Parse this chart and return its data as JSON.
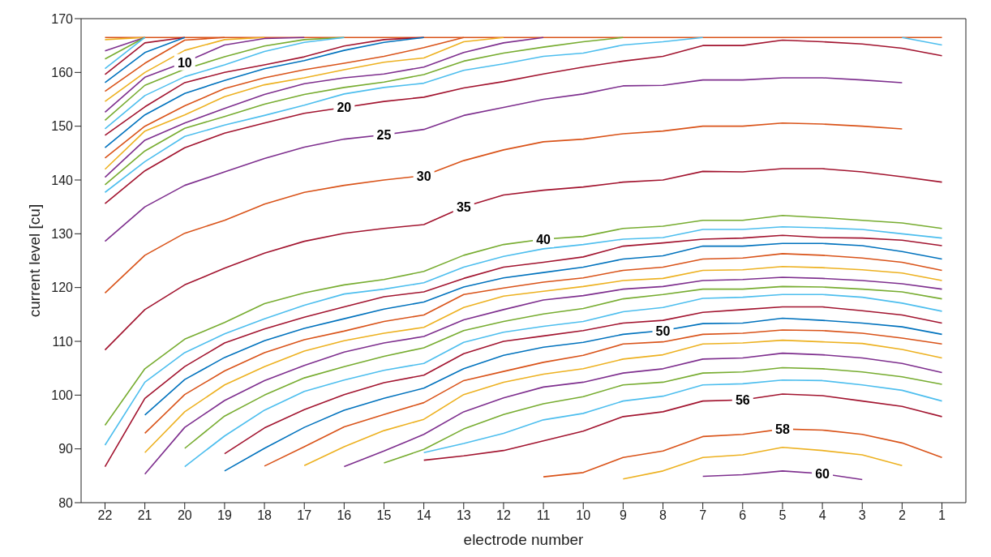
{
  "chart_data": {
    "type": "line",
    "xlabel": "electrode number",
    "ylabel": "current level [cu]",
    "categories": [
      "22",
      "21",
      "20",
      "19",
      "18",
      "17",
      "16",
      "15",
      "14",
      "13",
      "12",
      "11",
      "10",
      "9",
      "8",
      "7",
      "6",
      "5",
      "4",
      "3",
      "2",
      "1"
    ],
    "ylim": [
      80,
      170
    ],
    "yticks": [
      80,
      90,
      100,
      110,
      120,
      130,
      140,
      150,
      160,
      170
    ],
    "series": [
      {
        "color": "#d95319",
        "values": [
          166.5,
          166.5,
          166.5,
          166.5,
          166.5,
          166.5,
          166.5,
          166.5,
          166.5,
          166.5,
          166.5,
          166.5,
          166.5,
          166.5,
          166.5,
          166.5,
          166.5,
          166.5,
          166.5,
          166.5,
          166.5,
          166.5
        ]
      },
      {
        "color": "#edb120",
        "values": [
          166.1,
          166.5,
          null,
          null,
          null,
          null,
          null,
          null,
          null,
          null,
          null,
          null,
          null,
          null,
          null,
          null,
          null,
          null,
          null,
          null,
          null,
          null
        ]
      },
      {
        "color": "#7e2f8e",
        "values": [
          164.0,
          166.5,
          null,
          null,
          null,
          null,
          null,
          null,
          null,
          null,
          null,
          null,
          null,
          null,
          null,
          null,
          null,
          null,
          null,
          null,
          null,
          null
        ]
      },
      {
        "color": "#77ac30",
        "values": [
          162.5,
          166.5,
          null,
          null,
          null,
          null,
          null,
          null,
          null,
          null,
          null,
          null,
          null,
          null,
          null,
          null,
          null,
          null,
          null,
          null,
          null,
          null
        ]
      },
      {
        "color": "#4dbeee",
        "values": [
          160.7,
          166.5,
          null,
          null,
          null,
          null,
          null,
          null,
          null,
          null,
          null,
          null,
          null,
          null,
          null,
          null,
          null,
          null,
          null,
          null,
          null,
          null
        ]
      },
      {
        "color": "#a2142f",
        "values": [
          159.6,
          165.5,
          166.5,
          null,
          null,
          null,
          null,
          null,
          null,
          null,
          null,
          null,
          null,
          null,
          null,
          null,
          null,
          null,
          null,
          null,
          null,
          null
        ]
      },
      {
        "color": "#0072bd",
        "values": [
          158.1,
          163.7,
          166.5,
          null,
          null,
          null,
          null,
          null,
          null,
          null,
          null,
          null,
          null,
          null,
          null,
          null,
          null,
          null,
          null,
          null,
          null,
          null
        ]
      },
      {
        "color": "#d95319",
        "values": [
          156.5,
          161.7,
          166.0,
          166.5,
          null,
          null,
          null,
          null,
          null,
          null,
          null,
          null,
          null,
          null,
          null,
          null,
          null,
          null,
          null,
          null,
          null,
          null
        ]
      },
      {
        "color": "#edb120",
        "values": [
          154.6,
          160.0,
          164.1,
          166.1,
          166.5,
          null,
          null,
          null,
          null,
          null,
          null,
          null,
          null,
          null,
          null,
          null,
          null,
          null,
          null,
          null,
          null,
          null
        ]
      },
      {
        "color": "#7e2f8e",
        "values": [
          152.6,
          159.1,
          161.9,
          165.1,
          166.3,
          166.5,
          null,
          null,
          null,
          null,
          null,
          null,
          null,
          null,
          null,
          null,
          null,
          null,
          null,
          null,
          null,
          null
        ]
      },
      {
        "color": "#77ac30",
        "values": [
          151.1,
          157.6,
          160.6,
          162.9,
          164.9,
          166.1,
          166.5,
          null,
          null,
          null,
          null,
          null,
          null,
          null,
          null,
          null,
          null,
          null,
          null,
          null,
          null,
          null
        ]
      },
      {
        "color": "#4dbeee",
        "values": [
          149.5,
          155.7,
          159.2,
          161.4,
          163.9,
          165.6,
          166.5,
          null,
          null,
          null,
          null,
          null,
          null,
          null,
          null,
          null,
          null,
          null,
          null,
          null,
          null,
          null
        ]
      },
      {
        "color": "#a2142f",
        "values": [
          148.3,
          153.6,
          158.1,
          160.0,
          161.4,
          162.9,
          164.9,
          166.1,
          166.5,
          null,
          null,
          null,
          null,
          null,
          null,
          null,
          null,
          null,
          null,
          null,
          null,
          null
        ]
      },
      {
        "color": "#0072bd",
        "values": [
          146.0,
          152.1,
          156.1,
          158.5,
          160.7,
          162.2,
          164.1,
          165.6,
          166.5,
          null,
          null,
          null,
          null,
          null,
          null,
          null,
          null,
          null,
          null,
          null,
          null,
          null
        ]
      },
      {
        "color": "#d95319",
        "values": [
          144.1,
          150.0,
          153.8,
          157.0,
          159.0,
          160.5,
          161.7,
          163.0,
          164.6,
          166.5,
          null,
          null,
          null,
          null,
          null,
          null,
          null,
          null,
          null,
          null,
          null,
          null
        ]
      },
      {
        "color": "#edb120",
        "values": [
          142.0,
          149.1,
          152.1,
          155.5,
          157.7,
          159.0,
          160.5,
          161.9,
          162.7,
          165.7,
          166.5,
          null,
          null,
          null,
          null,
          null,
          null,
          null,
          null,
          null,
          null,
          null
        ]
      },
      {
        "color": "#7e2f8e",
        "values": [
          140.5,
          147.4,
          150.6,
          153.3,
          155.9,
          157.9,
          159.0,
          159.7,
          161.0,
          163.7,
          165.5,
          166.5,
          null,
          null,
          null,
          null,
          null,
          null,
          null,
          null,
          null,
          null
        ]
      },
      {
        "color": "#77ac30",
        "values": [
          139.1,
          145.4,
          149.6,
          151.8,
          154.1,
          155.9,
          157.2,
          158.2,
          159.6,
          162.1,
          163.6,
          164.7,
          165.7,
          166.5,
          null,
          null,
          null,
          null,
          null,
          null,
          null,
          null
        ]
      },
      {
        "color": "#4dbeee",
        "values": [
          137.7,
          143.4,
          148.1,
          150.2,
          152.0,
          153.9,
          156.0,
          157.2,
          158.0,
          160.4,
          161.6,
          163.0,
          163.6,
          165.1,
          165.7,
          166.5,
          null,
          null,
          null,
          null,
          166.5,
          165.1
        ]
      },
      {
        "color": "#a2142f",
        "values": [
          135.6,
          141.7,
          146.0,
          148.7,
          150.6,
          152.4,
          153.5,
          154.6,
          155.4,
          157.1,
          158.3,
          159.7,
          161.0,
          162.1,
          163.0,
          165.0,
          165.0,
          166.0,
          165.7,
          165.3,
          164.5,
          163.1
        ]
      },
      {
        "color": "#7e2f8e",
        "values": [
          128.6,
          135.0,
          139.0,
          141.5,
          144.0,
          146.1,
          147.6,
          148.4,
          149.4,
          152.0,
          153.5,
          155.0,
          156.0,
          157.5,
          157.6,
          158.6,
          158.6,
          159.0,
          159.0,
          158.6,
          158.1,
          null
        ]
      },
      {
        "color": "#d95319",
        "values": [
          119.0,
          126.0,
          130.1,
          132.5,
          135.5,
          137.7,
          139.0,
          140.0,
          140.8,
          143.6,
          145.6,
          147.1,
          147.6,
          148.6,
          149.1,
          150.0,
          150.0,
          150.6,
          150.4,
          150.0,
          149.5,
          null
        ]
      },
      {
        "color": "#a2142f",
        "values": [
          108.4,
          115.9,
          120.5,
          123.6,
          126.4,
          128.6,
          130.1,
          131.0,
          131.7,
          135.0,
          137.2,
          138.1,
          138.7,
          139.6,
          140.0,
          141.6,
          141.5,
          142.1,
          142.1,
          141.5,
          140.6,
          139.6
        ]
      },
      {
        "color": "#77ac30",
        "values": [
          94.4,
          104.9,
          110.4,
          113.5,
          117.0,
          119.0,
          120.5,
          121.5,
          123.0,
          126.0,
          128.0,
          129.0,
          129.5,
          131.0,
          131.4,
          132.5,
          132.5,
          133.4,
          133.0,
          132.5,
          132.0,
          131.0
        ]
      },
      {
        "color": "#4dbeee",
        "values": [
          90.7,
          102.4,
          107.9,
          111.4,
          114.2,
          116.7,
          118.8,
          119.7,
          120.9,
          123.8,
          125.8,
          127.2,
          128.0,
          129.0,
          129.3,
          130.8,
          130.8,
          131.3,
          131.1,
          130.8,
          130.0,
          129.2
        ]
      },
      {
        "color": "#a2142f",
        "values": [
          86.7,
          99.4,
          105.3,
          109.7,
          112.3,
          114.5,
          116.4,
          118.3,
          119.2,
          121.7,
          123.8,
          124.7,
          125.7,
          127.7,
          128.3,
          129.0,
          129.2,
          129.7,
          129.3,
          129.2,
          128.8,
          127.8
        ]
      },
      {
        "color": "#0072bd",
        "values": [
          null,
          96.3,
          102.9,
          107.0,
          110.1,
          112.4,
          114.2,
          116.0,
          117.3,
          120.1,
          121.8,
          122.8,
          123.8,
          125.3,
          125.9,
          127.7,
          127.7,
          128.2,
          128.2,
          127.8,
          126.7,
          125.3
        ]
      },
      {
        "color": "#d95319",
        "values": [
          null,
          92.9,
          100.1,
          104.5,
          107.9,
          110.3,
          111.9,
          113.7,
          114.9,
          118.7,
          119.9,
          121.0,
          121.8,
          123.2,
          123.8,
          125.3,
          125.5,
          126.3,
          126.0,
          125.5,
          124.7,
          123.2
        ]
      },
      {
        "color": "#edb120",
        "values": [
          null,
          89.3,
          96.9,
          101.9,
          105.3,
          108.2,
          110.1,
          111.5,
          112.6,
          116.3,
          118.4,
          119.3,
          120.2,
          121.3,
          121.7,
          123.2,
          123.3,
          123.9,
          123.7,
          123.3,
          122.7,
          121.3
        ]
      },
      {
        "color": "#7e2f8e",
        "values": [
          null,
          85.3,
          94.0,
          99.0,
          102.7,
          105.5,
          108.0,
          109.7,
          110.9,
          114.0,
          115.9,
          117.7,
          118.5,
          119.7,
          120.2,
          121.3,
          121.5,
          121.9,
          121.7,
          121.3,
          120.7,
          119.7
        ]
      },
      {
        "color": "#77ac30",
        "values": [
          null,
          null,
          90.1,
          96.1,
          100.0,
          103.2,
          105.3,
          107.2,
          108.8,
          112.0,
          113.7,
          115.1,
          116.1,
          117.9,
          118.7,
          119.7,
          119.7,
          120.2,
          120.1,
          119.7,
          119.2,
          117.9
        ]
      },
      {
        "color": "#4dbeee",
        "values": [
          null,
          null,
          86.7,
          92.4,
          97.2,
          100.7,
          102.8,
          104.6,
          105.9,
          109.8,
          111.7,
          112.8,
          113.7,
          115.5,
          116.3,
          118.0,
          118.2,
          118.7,
          118.7,
          118.2,
          117.1,
          115.6
        ]
      },
      {
        "color": "#a2142f",
        "values": [
          null,
          null,
          null,
          89.1,
          93.9,
          97.3,
          100.1,
          102.3,
          103.7,
          107.7,
          110.0,
          111.0,
          112.0,
          113.4,
          113.9,
          115.4,
          115.9,
          116.4,
          116.4,
          115.7,
          114.9,
          113.4
        ]
      },
      {
        "color": "#0072bd",
        "values": [
          null,
          null,
          null,
          85.9,
          90.1,
          94.0,
          97.2,
          99.4,
          101.3,
          104.9,
          107.4,
          108.9,
          109.8,
          111.3,
          112.0,
          113.3,
          113.4,
          114.3,
          113.9,
          113.4,
          112.7,
          111.3
        ]
      },
      {
        "color": "#d95319",
        "values": [
          null,
          null,
          null,
          null,
          86.8,
          90.4,
          94.1,
          96.4,
          98.6,
          102.7,
          104.4,
          106.1,
          107.4,
          109.5,
          109.9,
          111.3,
          111.5,
          112.1,
          112.0,
          111.5,
          110.6,
          109.5
        ]
      },
      {
        "color": "#edb120",
        "values": [
          null,
          null,
          null,
          null,
          null,
          86.9,
          90.4,
          93.4,
          95.5,
          100.1,
          102.4,
          103.9,
          104.9,
          106.7,
          107.5,
          109.5,
          109.7,
          110.2,
          109.9,
          109.6,
          108.5,
          106.9
        ]
      },
      {
        "color": "#7e2f8e",
        "values": [
          null,
          null,
          null,
          null,
          null,
          null,
          86.7,
          89.6,
          92.7,
          96.9,
          99.5,
          101.5,
          102.4,
          104.1,
          104.9,
          106.7,
          106.9,
          107.8,
          107.5,
          106.9,
          105.9,
          104.2
        ]
      },
      {
        "color": "#77ac30",
        "values": [
          null,
          null,
          null,
          null,
          null,
          null,
          null,
          87.4,
          89.9,
          93.7,
          96.4,
          98.4,
          99.7,
          101.9,
          102.4,
          104.1,
          104.3,
          105.1,
          104.9,
          104.3,
          103.4,
          102.0
        ]
      },
      {
        "color": "#4dbeee",
        "values": [
          null,
          null,
          null,
          null,
          null,
          null,
          null,
          null,
          89.3,
          91.0,
          92.9,
          95.4,
          96.6,
          98.9,
          99.8,
          101.9,
          102.1,
          102.8,
          102.7,
          101.9,
          100.9,
          98.9
        ]
      },
      {
        "color": "#a2142f",
        "values": [
          null,
          null,
          null,
          null,
          null,
          null,
          null,
          null,
          87.9,
          88.7,
          89.7,
          91.5,
          93.3,
          96.0,
          96.9,
          98.9,
          99.1,
          100.2,
          99.9,
          98.9,
          97.9,
          96.0
        ]
      },
      {
        "color": "#d95319",
        "values": [
          null,
          null,
          null,
          null,
          null,
          null,
          null,
          null,
          null,
          null,
          null,
          84.8,
          85.6,
          88.4,
          89.6,
          92.3,
          92.7,
          93.7,
          93.5,
          92.7,
          91.1,
          88.4
        ]
      },
      {
        "color": "#edb120",
        "values": [
          null,
          null,
          null,
          null,
          null,
          null,
          null,
          null,
          null,
          null,
          null,
          null,
          null,
          84.4,
          85.9,
          88.4,
          88.9,
          90.3,
          89.7,
          88.9,
          86.9,
          null
        ]
      },
      {
        "color": "#7e2f8e",
        "values": [
          null,
          null,
          null,
          null,
          null,
          null,
          null,
          null,
          null,
          null,
          null,
          null,
          null,
          null,
          null,
          84.9,
          85.2,
          85.9,
          85.4,
          84.3,
          null,
          null
        ]
      }
    ],
    "annotations": [
      {
        "text": "10",
        "x": "20",
        "y": 161.9
      },
      {
        "text": "20",
        "x": "16",
        "y": 153.5
      },
      {
        "text": "25",
        "x": "15",
        "y": 148.4
      },
      {
        "text": "30",
        "x": "14",
        "y": 140.8
      },
      {
        "text": "35",
        "x": "13",
        "y": 135.0
      },
      {
        "text": "40",
        "x": "11",
        "y": 129.0
      },
      {
        "text": "50",
        "x": "8",
        "y": 112.0
      },
      {
        "text": "56",
        "x": "6",
        "y": 99.1
      },
      {
        "text": "58",
        "x": "5",
        "y": 93.7
      },
      {
        "text": "60",
        "x": "4",
        "y": 85.4
      }
    ]
  }
}
